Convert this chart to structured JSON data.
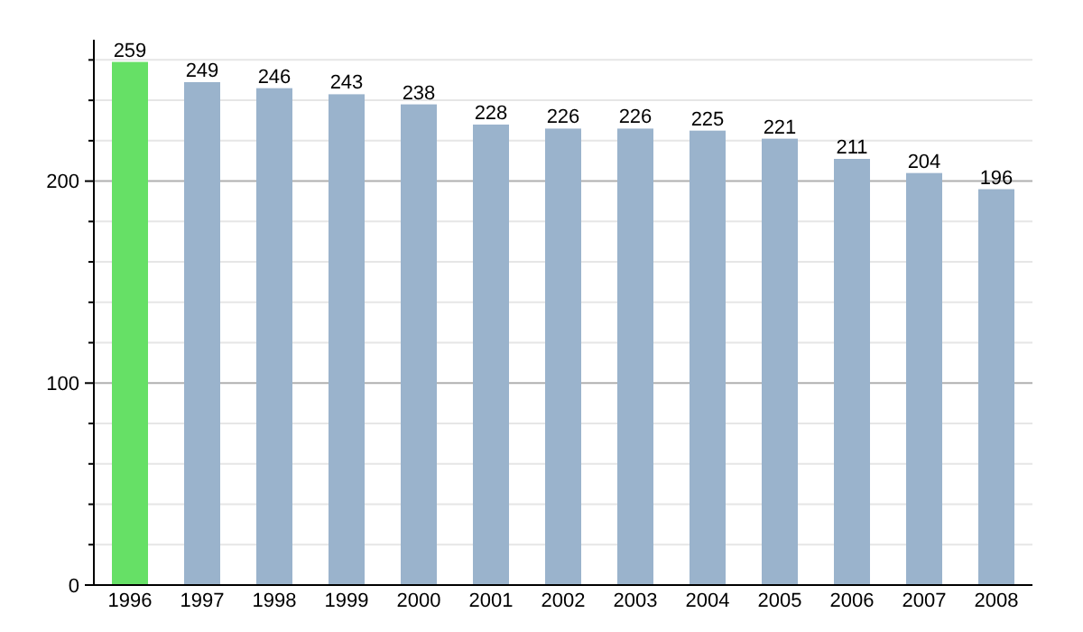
{
  "chart_data": {
    "type": "bar",
    "categories": [
      "1996",
      "1997",
      "1998",
      "1999",
      "2000",
      "2001",
      "2002",
      "2003",
      "2004",
      "2005",
      "2006",
      "2007",
      "2008"
    ],
    "values": [
      259,
      249,
      246,
      243,
      238,
      228,
      226,
      226,
      225,
      221,
      211,
      204,
      196
    ],
    "colors": [
      "#66e066",
      "#9ab3cc",
      "#9ab3cc",
      "#9ab3cc",
      "#9ab3cc",
      "#9ab3cc",
      "#9ab3cc",
      "#9ab3cc",
      "#9ab3cc",
      "#9ab3cc",
      "#9ab3cc",
      "#9ab3cc",
      "#9ab3cc"
    ],
    "ylim": [
      0,
      270
    ],
    "yticks": [
      0,
      {
        "value": 20,
        "label": null
      },
      {
        "value": 40,
        "label": null
      },
      {
        "value": 60,
        "label": null
      },
      {
        "value": 80,
        "label": null
      },
      100,
      {
        "value": 120,
        "label": null
      },
      {
        "value": 140,
        "label": null
      },
      {
        "value": 160,
        "label": null
      },
      {
        "value": 180,
        "label": null
      },
      200,
      {
        "value": 220,
        "label": null
      },
      {
        "value": 240,
        "label": null
      },
      {
        "value": 260,
        "label": null
      }
    ],
    "grid": true,
    "data_labels": true
  }
}
